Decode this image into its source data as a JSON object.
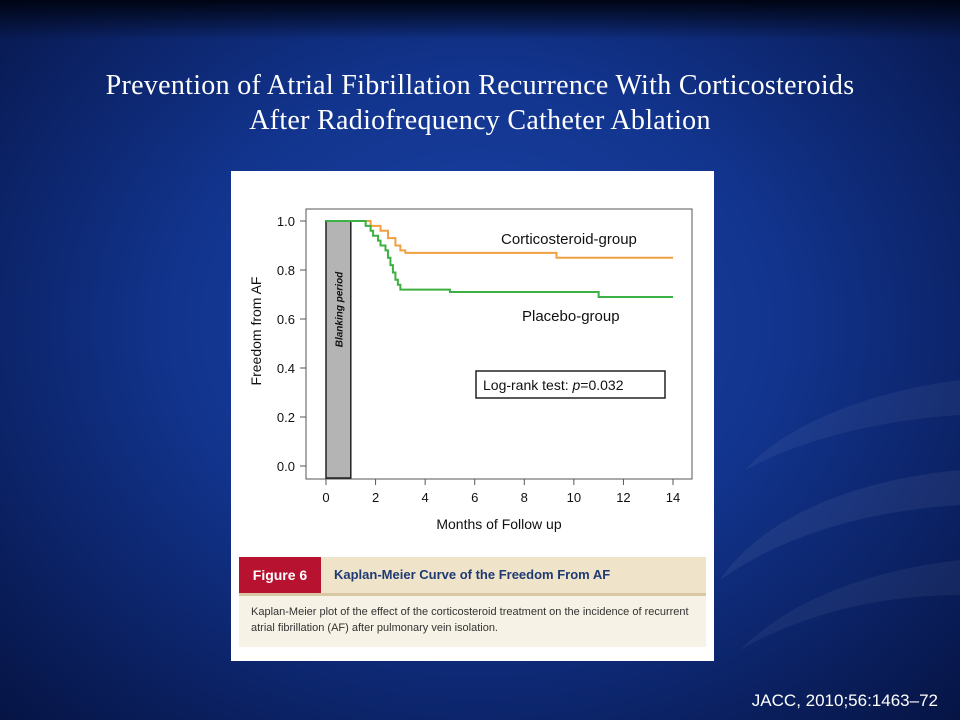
{
  "slide": {
    "title_line1": "Prevention of Atrial Fibrillation Recurrence With Corticosteroids",
    "title_line2": "After Radiofrequency Catheter Ablation",
    "citation": "JACC, 2010;56:1463–72"
  },
  "figure": {
    "label": "Figure 6",
    "title": "Kaplan-Meier Curve of the Freedom From AF",
    "caption": "Kaplan-Meier plot of the effect of the corticosteroid treatment on the incidence of recurrent atrial fibrillation (AF) after pulmonary vein isolation."
  },
  "colors": {
    "corticosteroid": "#f0a040",
    "placebo": "#3cb043",
    "blanking": "#b4b4b4"
  },
  "chart_data": {
    "type": "line",
    "title": "",
    "xlabel": "Months of Follow up",
    "ylabel": "Freedom from AF",
    "xlim": [
      0,
      14
    ],
    "ylim": [
      0,
      1.0
    ],
    "xticks": [
      0,
      2,
      4,
      6,
      8,
      10,
      12,
      14
    ],
    "yticks": [
      0.0,
      0.2,
      0.4,
      0.6,
      0.8,
      1.0
    ],
    "ytick_labels": [
      "0.0",
      "0.2",
      "0.4",
      "0.6",
      "0.8",
      "1.0"
    ],
    "grid": false,
    "blanking_period": {
      "label": "Blanking period",
      "x": [
        0,
        1
      ]
    },
    "annotation": {
      "prefix": "Log-rank test: ",
      "italic": "p",
      "suffix": "=0.032"
    },
    "series": [
      {
        "name": "Corticosteroid-group",
        "step_points": [
          [
            0,
            1.0
          ],
          [
            1.8,
            0.98
          ],
          [
            2.2,
            0.96
          ],
          [
            2.5,
            0.93
          ],
          [
            2.8,
            0.9
          ],
          [
            3.0,
            0.88
          ],
          [
            3.2,
            0.87
          ],
          [
            9.3,
            0.85
          ],
          [
            14,
            0.85
          ]
        ]
      },
      {
        "name": "Placebo-group",
        "step_points": [
          [
            0,
            1.0
          ],
          [
            1.6,
            0.98
          ],
          [
            1.8,
            0.96
          ],
          [
            1.9,
            0.94
          ],
          [
            2.1,
            0.92
          ],
          [
            2.2,
            0.9
          ],
          [
            2.4,
            0.88
          ],
          [
            2.5,
            0.85
          ],
          [
            2.6,
            0.82
          ],
          [
            2.7,
            0.79
          ],
          [
            2.8,
            0.76
          ],
          [
            2.9,
            0.74
          ],
          [
            3.0,
            0.72
          ],
          [
            5.0,
            0.71
          ],
          [
            11.0,
            0.69
          ],
          [
            14,
            0.69
          ]
        ]
      }
    ]
  }
}
